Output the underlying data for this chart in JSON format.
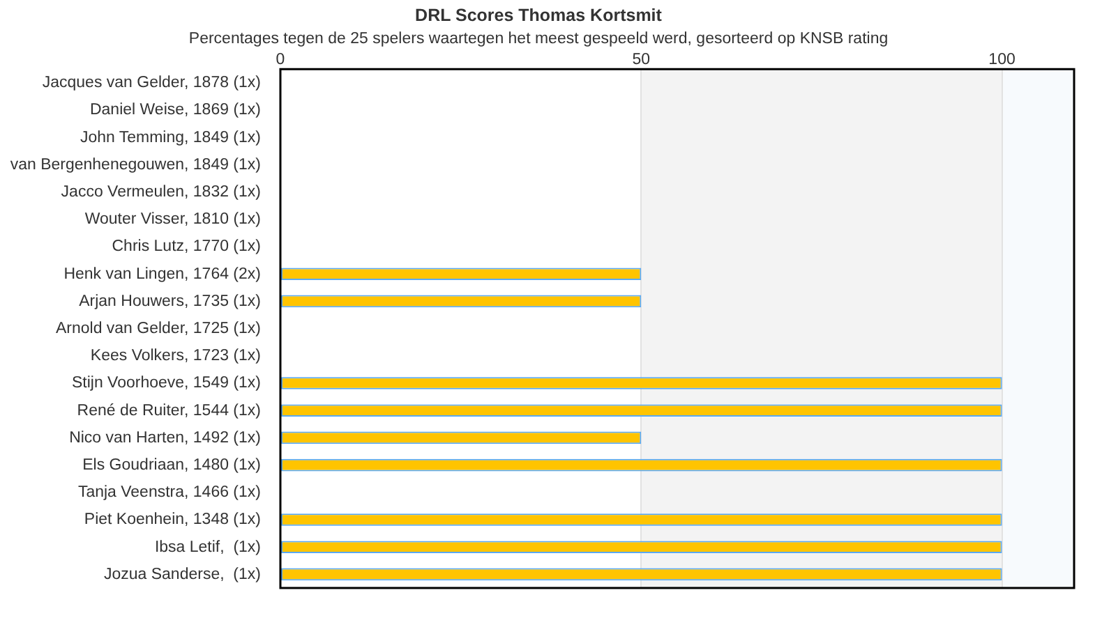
{
  "chart_data": {
    "type": "bar",
    "orientation": "horizontal",
    "title": "DRL Scores Thomas Kortsmit",
    "subtitle": "Percentages tegen de 25 spelers waartegen het meest gespeeld werd, gesorteerd op KNSB rating",
    "categories": [
      "Jacques van Gelder, 1878 (1x)",
      "Daniel Weise, 1869 (1x)",
      "John Temming, 1849 (1x)",
      "van Bergenhenegouwen, 1849 (1x)",
      "Jacco Vermeulen, 1832 (1x)",
      "Wouter Visser, 1810 (1x)",
      "Chris Lutz, 1770 (1x)",
      "Henk van Lingen, 1764 (2x)",
      "Arjan Houwers, 1735 (1x)",
      "Arnold van Gelder, 1725 (1x)",
      "Kees Volkers, 1723 (1x)",
      "Stijn Voorhoeve, 1549 (1x)",
      "René de Ruiter, 1544 (1x)",
      "Nico van Harten, 1492 (1x)",
      "Els Goudriaan, 1480 (1x)",
      "Tanja Veenstra, 1466 (1x)",
      "Piet Koenhein, 1348 (1x)",
      "Ibsa Letif,  (1x)",
      "Jozua Sanderse,  (1x)"
    ],
    "values": [
      0,
      0,
      0,
      0,
      0,
      0,
      0,
      50,
      50,
      0,
      0,
      100,
      100,
      50,
      100,
      0,
      100,
      100,
      100
    ],
    "color": "#ffc400",
    "xlim": [
      0,
      110
    ],
    "xticks": [
      0,
      50,
      100
    ],
    "grid": "x",
    "bands": [
      {
        "axis": "x",
        "from": 50,
        "to": 100,
        "color": "#f3f3f3"
      },
      {
        "axis": "x",
        "from": 100,
        "to": 110,
        "color": "#f7fafd"
      }
    ]
  }
}
